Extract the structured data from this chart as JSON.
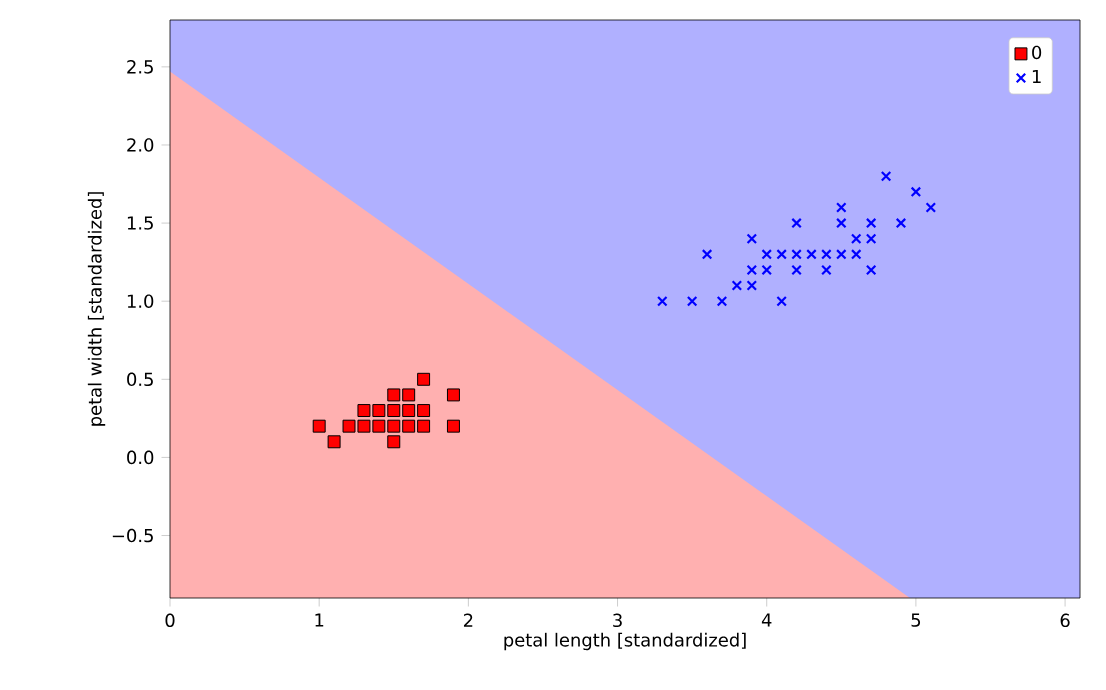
{
  "chart_data": {
    "type": "scatter",
    "xlabel": "petal length [standardized]",
    "ylabel": "petal width [standardized]",
    "xlim": [
      0,
      6.1
    ],
    "ylim": [
      -0.9,
      2.8
    ],
    "xticks": [
      0,
      1,
      2,
      3,
      4,
      5,
      6
    ],
    "yticks": [
      {
        "value": -0.5,
        "label": "−0.5"
      },
      {
        "value": 0,
        "label": "0.0"
      },
      {
        "value": 0.5,
        "label": "0.5"
      },
      {
        "value": 1,
        "label": "1.0"
      },
      {
        "value": 1.5,
        "label": "1.5"
      },
      {
        "value": 2,
        "label": "2.0"
      },
      {
        "value": 2.5,
        "label": "2.5"
      }
    ],
    "legend": "top right",
    "bands": [
      {
        "axis": "y",
        "from": -0.9,
        "to": 2.8,
        "color": "#b0b0ff"
      }
    ],
    "series": [
      {
        "type": "area",
        "color": "#ffb0b0",
        "x": [
          0,
          4.96
        ],
        "values": [
          2.47,
          -0.9
        ]
      },
      {
        "name": "0",
        "color": "#ff0000",
        "marker": "square",
        "x": [
          1.7,
          1.9,
          1.3,
          1.4,
          1.5,
          1.6,
          1.7,
          1.5,
          1.6,
          1.0,
          1.2,
          1.3,
          1.4,
          1.5,
          1.6,
          1.7,
          1.9,
          1.1,
          1.5
        ],
        "values": [
          0.5,
          0.4,
          0.3,
          0.3,
          0.3,
          0.3,
          0.3,
          0.4,
          0.4,
          0.2,
          0.2,
          0.2,
          0.2,
          0.2,
          0.2,
          0.2,
          0.2,
          0.1,
          0.1
        ]
      },
      {
        "name": "1",
        "color": "#0000ff",
        "marker": "cross",
        "x": [
          3.3,
          3.5,
          3.7,
          4.1,
          3.8,
          3.9,
          3.6,
          4.0,
          4.1,
          4.2,
          4.3,
          4.4,
          4.5,
          4.6,
          3.9,
          4.0,
          4.2,
          4.4,
          4.7,
          3.9,
          4.6,
          4.7,
          4.2,
          4.5,
          4.7,
          4.9,
          4.5,
          4.8,
          5.0,
          5.1
        ],
        "values": [
          1.0,
          1.0,
          1.0,
          1.0,
          1.1,
          1.1,
          1.3,
          1.3,
          1.3,
          1.3,
          1.3,
          1.3,
          1.3,
          1.3,
          1.2,
          1.2,
          1.2,
          1.2,
          1.2,
          1.4,
          1.4,
          1.4,
          1.5,
          1.5,
          1.5,
          1.5,
          1.6,
          1.8,
          1.7,
          1.6
        ]
      }
    ]
  }
}
